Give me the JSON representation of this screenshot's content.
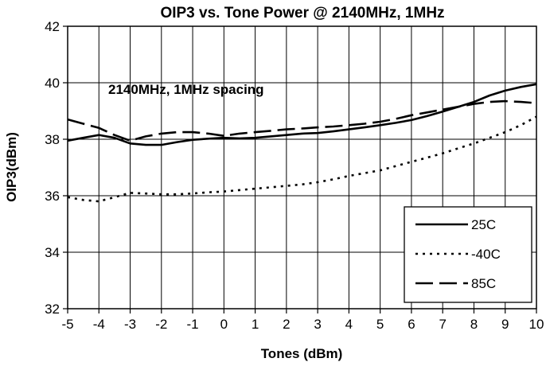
{
  "chart_data": {
    "type": "line",
    "title": "OIP3 vs. Tone Power @ 2140MHz, 1MHz",
    "xlabel": "Tones (dBm)",
    "ylabel": "OIP3(dBm)",
    "xlim": [
      -5,
      10
    ],
    "ylim": [
      32,
      42
    ],
    "x_ticks": [
      "-5",
      "-4",
      "-3",
      "-2",
      "-1",
      "0",
      "1",
      "2",
      "3",
      "4",
      "5",
      "6",
      "7",
      "8",
      "9",
      "10"
    ],
    "y_ticks": [
      "32",
      "34",
      "36",
      "38",
      "40",
      "42"
    ],
    "grid": true,
    "annotation": "2140MHz, 1MHz spacing",
    "legend_position": "bottom-right",
    "series": [
      {
        "name": "25C",
        "style": "solid",
        "color": "#000000",
        "x": [
          -5,
          -4.5,
          -4,
          -3.5,
          -3,
          -2.5,
          -2,
          -1.5,
          -1,
          -0.5,
          0,
          0.5,
          1,
          1.5,
          2,
          2.5,
          3,
          3.5,
          4,
          4.5,
          5,
          5.5,
          6,
          6.5,
          7,
          7.5,
          8,
          8.5,
          9,
          9.5,
          10
        ],
        "y": [
          37.95,
          38.05,
          38.15,
          38.05,
          37.85,
          37.8,
          37.8,
          37.9,
          37.98,
          38.02,
          38.05,
          38.03,
          38.05,
          38.1,
          38.15,
          38.2,
          38.22,
          38.28,
          38.35,
          38.42,
          38.5,
          38.58,
          38.68,
          38.82,
          38.98,
          39.15,
          39.32,
          39.55,
          39.72,
          39.85,
          39.95
        ]
      },
      {
        "name": "-40C",
        "style": "dotted",
        "color": "#000000",
        "x": [
          -5,
          -4.5,
          -4,
          -3.5,
          -3,
          -2.5,
          -2,
          -1.5,
          -1,
          -0.5,
          0,
          0.5,
          1,
          1.5,
          2,
          2.5,
          3,
          3.5,
          4,
          4.5,
          5,
          5.5,
          6,
          6.5,
          7,
          7.5,
          8,
          8.5,
          9,
          9.5,
          10
        ],
        "y": [
          35.95,
          35.85,
          35.8,
          35.95,
          36.1,
          36.08,
          36.05,
          36.05,
          36.08,
          36.12,
          36.15,
          36.2,
          36.25,
          36.3,
          36.35,
          36.4,
          36.48,
          36.58,
          36.7,
          36.8,
          36.9,
          37.05,
          37.2,
          37.35,
          37.5,
          37.68,
          37.85,
          38.05,
          38.25,
          38.5,
          38.8
        ]
      },
      {
        "name": "85C",
        "style": "dashed",
        "color": "#000000",
        "x": [
          -5,
          -4.5,
          -4,
          -3.5,
          -3,
          -2.5,
          -2,
          -1.5,
          -1,
          -0.5,
          0,
          0.5,
          1,
          1.5,
          2,
          2.5,
          3,
          3.5,
          4,
          4.5,
          5,
          5.5,
          6,
          6.5,
          7,
          7.5,
          8,
          8.5,
          9,
          9.5,
          10
        ],
        "y": [
          38.7,
          38.55,
          38.4,
          38.15,
          37.95,
          38.1,
          38.2,
          38.25,
          38.25,
          38.2,
          38.12,
          38.2,
          38.25,
          38.3,
          38.35,
          38.38,
          38.42,
          38.45,
          38.5,
          38.55,
          38.62,
          38.72,
          38.85,
          38.95,
          39.05,
          39.15,
          39.25,
          39.32,
          39.35,
          39.32,
          39.28
        ]
      }
    ]
  }
}
